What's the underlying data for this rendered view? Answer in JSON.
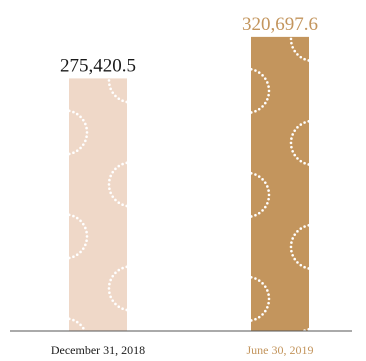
{
  "chart_data": {
    "type": "bar",
    "categories": [
      "December 31, 2018",
      "June 30, 2019"
    ],
    "values": [
      275420.5,
      320697.6
    ],
    "value_labels": [
      "275,420.5",
      "320,697.6"
    ],
    "bar_colors": [
      "#efd8c8",
      "#c3955d"
    ],
    "category_label_colors": [
      "#1a1a1a",
      "#c3955d"
    ],
    "value_label_colors": [
      "#1a1a1a",
      "#c3955d"
    ],
    "axis_color": "#555555",
    "pattern": "dotted-arcs",
    "ylim": [
      0,
      350000
    ],
    "grid": false,
    "legend": "none"
  }
}
